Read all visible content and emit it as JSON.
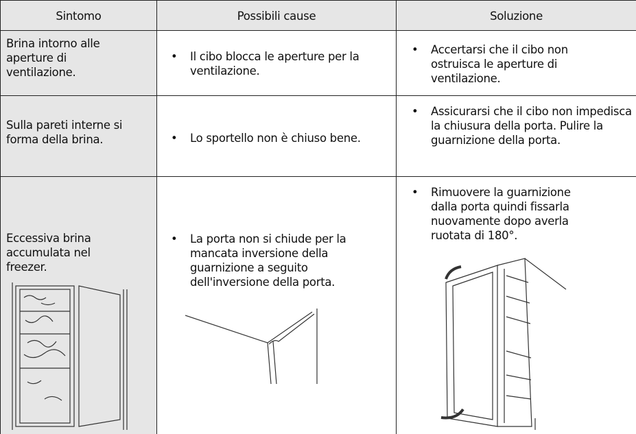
{
  "table": {
    "headers": [
      "Sintomo",
      "Possibili cause",
      "Soluzione"
    ],
    "rows": [
      [
        "Brina intorno alle aperture di ventilazione.",
        "Il cibo blocca le aperture per la ventilazione.",
        "Accertarsi che il cibo non ostruisca le aperture di ventilazione."
      ],
      [
        "Sulla pareti interne si forma della brina.",
        "Lo sportello non è chiuso bene.",
        "Assicurarsi che il cibo non impedisca la chiusura della porta. Pulire la guarnizione della porta."
      ],
      [
        "Eccessiva brina accumulata nel freezer.",
        "La porta non si chiude per la mancata inversione della guarnizione a seguito dell'inversione della porta.",
        "Rimuovere la guarnizione dalla porta quindi fissarla nuovamente dopo averla ruotata di 180°."
      ]
    ]
  }
}
